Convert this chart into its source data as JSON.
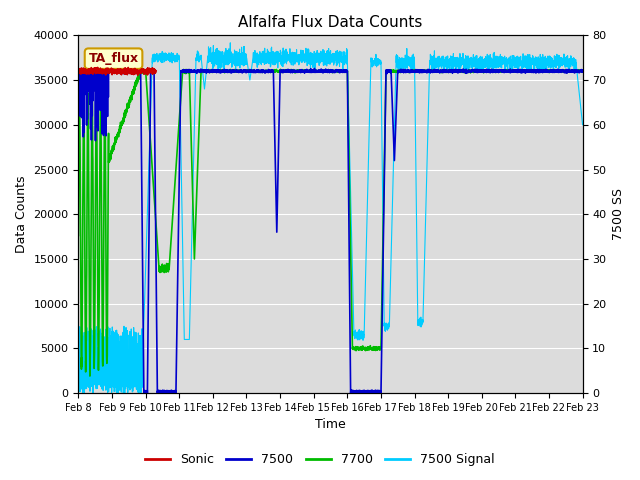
{
  "title": "Alfalfa Flux Data Counts",
  "xlabel": "Time",
  "ylabel_left": "Data Counts",
  "ylabel_right": "7500 SS",
  "ylim_left": [
    0,
    40000
  ],
  "ylim_right": [
    0,
    80
  ],
  "annotation_text": "TA_flux",
  "background_color": "#dcdcdc",
  "colors": {
    "sonic": "#cc0000",
    "s7500": "#0000cc",
    "s7700": "#00bb00",
    "signal": "#00ccff"
  },
  "x_tick_labels": [
    "Feb 8",
    "Feb 9",
    "Feb 10",
    "Feb 11",
    "Feb 12",
    "Feb 13",
    "Feb 14",
    "Feb 15",
    "Feb 16",
    "Feb 17",
    "Feb 18",
    "Feb 19",
    "Feb 20",
    "Feb 21",
    "Feb 22",
    "Feb 23"
  ],
  "legend_labels": [
    "Sonic",
    "7500",
    "7700",
    "7500 Signal"
  ],
  "right_ticks": [
    0,
    10,
    20,
    30,
    40,
    50,
    60,
    70,
    80
  ],
  "left_ticks": [
    0,
    5000,
    10000,
    15000,
    20000,
    25000,
    30000,
    35000,
    40000
  ]
}
